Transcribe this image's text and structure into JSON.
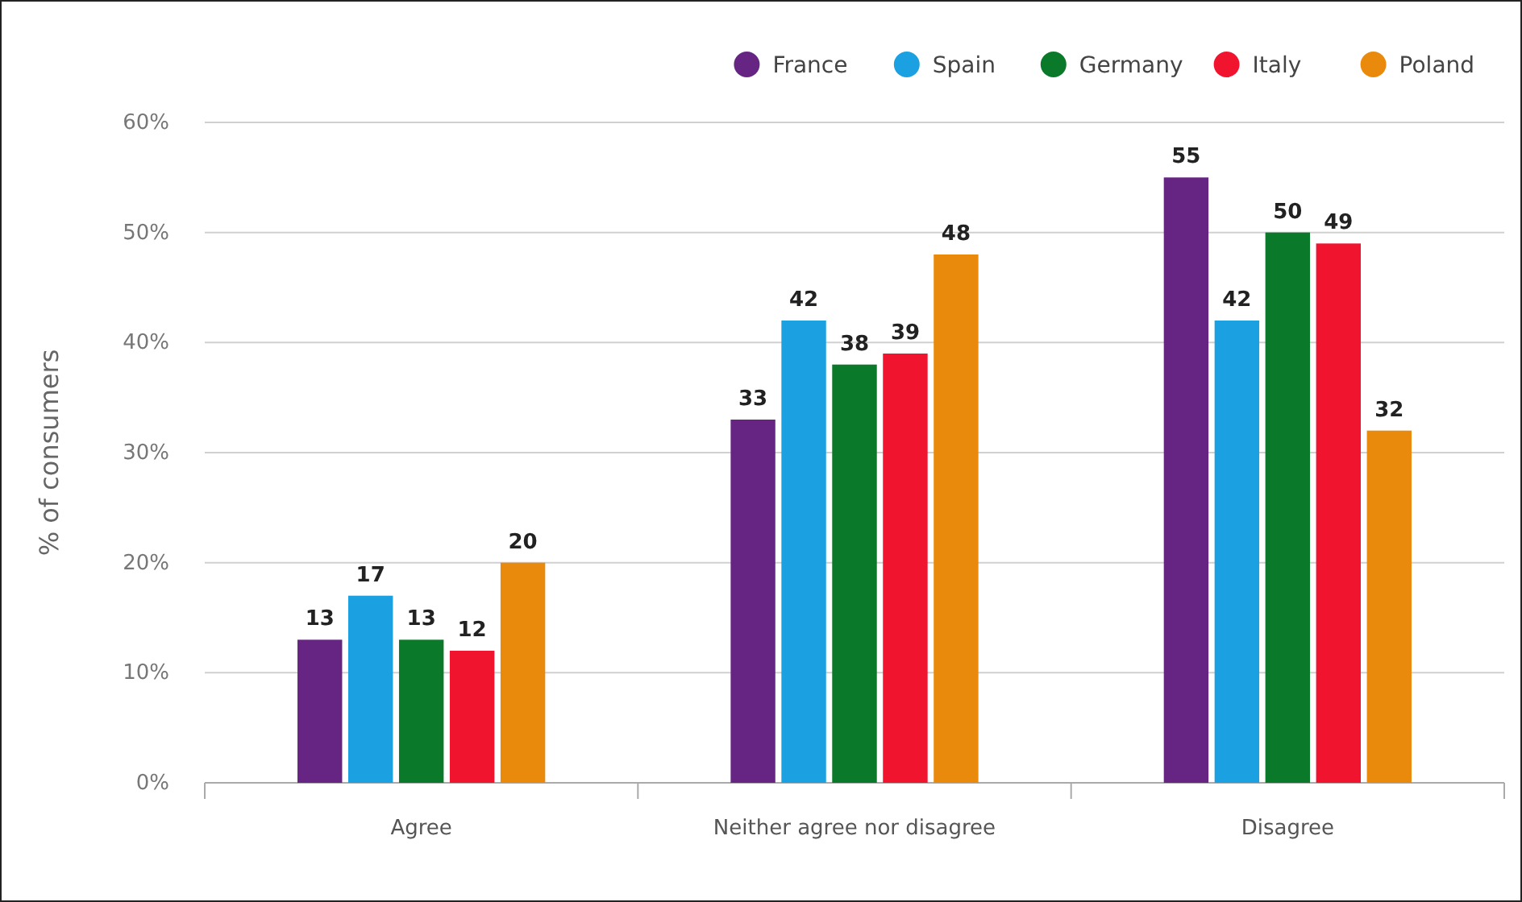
{
  "chart_data": {
    "type": "bar",
    "ylabel": "% of consumers",
    "categories": [
      "Agree",
      "Neither agree nor disagree",
      "Disagree"
    ],
    "series": [
      {
        "name": "France",
        "color": "#662483",
        "values": [
          13,
          33,
          55
        ]
      },
      {
        "name": "Spain",
        "color": "#1ba1e2",
        "values": [
          17,
          42,
          42
        ]
      },
      {
        "name": "Germany",
        "color": "#0a7a2a",
        "values": [
          13,
          38,
          50
        ]
      },
      {
        "name": "Italy",
        "color": "#f0142f",
        "values": [
          12,
          39,
          49
        ]
      },
      {
        "name": "Poland",
        "color": "#e98a0c",
        "values": [
          20,
          48,
          32
        ]
      }
    ],
    "ylim": [
      0,
      60
    ],
    "yticks": [
      {
        "value": 0,
        "label": "0%"
      },
      {
        "value": 10,
        "label": "10%"
      },
      {
        "value": 20,
        "label": "20%"
      },
      {
        "value": 30,
        "label": "30%"
      },
      {
        "value": 40,
        "label": "40%"
      },
      {
        "value": 50,
        "label": "50%"
      },
      {
        "value": 60,
        "label": "60%"
      }
    ],
    "grid": "y",
    "legend": "top right",
    "data_labels": true
  }
}
